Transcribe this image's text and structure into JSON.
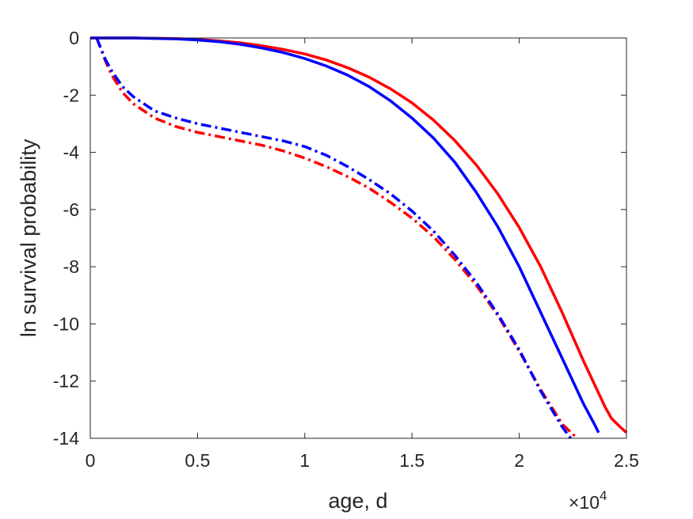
{
  "chart_data": {
    "type": "line",
    "title": "",
    "xlabel": "age, d",
    "ylabel": "ln survival probability",
    "x_multiplier": {
      "base": "×10",
      "exponent": "4"
    },
    "xlim": [
      0,
      25000
    ],
    "ylim": [
      -14,
      0
    ],
    "xticks": [
      0,
      5000,
      10000,
      15000,
      20000,
      25000
    ],
    "xtick_labels": [
      "0",
      "0.5",
      "1",
      "1.5",
      "2",
      "2.5"
    ],
    "yticks": [
      0,
      -2,
      -4,
      -6,
      -8,
      -10,
      -12,
      -14
    ],
    "ytick_labels": [
      "0",
      "-2",
      "-4",
      "-6",
      "-8",
      "-10",
      "-12",
      "-14"
    ],
    "grid": false,
    "box": true,
    "series": [
      {
        "color": "#ff0000",
        "style": "solid",
        "x": [
          0,
          2000,
          4000,
          5000,
          6000,
          7000,
          8000,
          9000,
          10000,
          11000,
          12000,
          13000,
          14000,
          15000,
          16000,
          17000,
          18000,
          19000,
          20000,
          21000,
          22000,
          23000,
          24000,
          24300,
          24700,
          25000
        ],
        "y": [
          0,
          0,
          -0.02,
          -0.05,
          -0.1,
          -0.17,
          -0.27,
          -0.4,
          -0.56,
          -0.77,
          -1.04,
          -1.37,
          -1.78,
          -2.27,
          -2.87,
          -3.59,
          -4.44,
          -5.45,
          -6.63,
          -8.0,
          -9.6,
          -11.3,
          -12.9,
          -13.3,
          -13.6,
          -13.8
        ]
      },
      {
        "color": "#0000ff",
        "style": "solid",
        "x": [
          0,
          2000,
          4000,
          5000,
          6000,
          7000,
          8000,
          9000,
          10000,
          11000,
          12000,
          13000,
          14000,
          15000,
          16000,
          17000,
          18000,
          19000,
          20000,
          21000,
          22000,
          23000,
          23500,
          23700
        ],
        "y": [
          0,
          0,
          -0.03,
          -0.07,
          -0.13,
          -0.22,
          -0.35,
          -0.51,
          -0.72,
          -0.98,
          -1.3,
          -1.7,
          -2.2,
          -2.8,
          -3.5,
          -4.35,
          -5.4,
          -6.6,
          -8.0,
          -9.6,
          -11.2,
          -12.8,
          -13.5,
          -13.8
        ]
      },
      {
        "color": "#ff0000",
        "style": "dash-dot",
        "x": [
          300,
          700,
          1000,
          1500,
          2000,
          3000,
          4000,
          5000,
          6000,
          7000,
          8000,
          9000,
          10000,
          11000,
          12000,
          13000,
          14000,
          15000,
          16000,
          17000,
          18000,
          19000,
          20000,
          21000,
          22000,
          22700
        ],
        "y": [
          0,
          -0.8,
          -1.3,
          -1.9,
          -2.3,
          -2.8,
          -3.1,
          -3.3,
          -3.45,
          -3.6,
          -3.75,
          -3.95,
          -4.2,
          -4.5,
          -4.85,
          -5.25,
          -5.75,
          -6.3,
          -6.95,
          -7.75,
          -8.65,
          -9.7,
          -10.95,
          -12.3,
          -13.5,
          -14.0
        ]
      },
      {
        "color": "#0000ff",
        "style": "dash-dot",
        "x": [
          300,
          700,
          1000,
          1500,
          2000,
          3000,
          4000,
          5000,
          6000,
          7000,
          8000,
          9000,
          10000,
          11000,
          12000,
          13000,
          14000,
          15000,
          16000,
          17000,
          18000,
          19000,
          20000,
          21000,
          22000,
          22400
        ],
        "y": [
          0,
          -0.75,
          -1.15,
          -1.7,
          -2.05,
          -2.55,
          -2.8,
          -3.0,
          -3.15,
          -3.3,
          -3.45,
          -3.6,
          -3.8,
          -4.1,
          -4.5,
          -4.95,
          -5.45,
          -6.05,
          -6.75,
          -7.6,
          -8.55,
          -9.65,
          -10.9,
          -12.35,
          -13.6,
          -14.0
        ]
      }
    ]
  }
}
